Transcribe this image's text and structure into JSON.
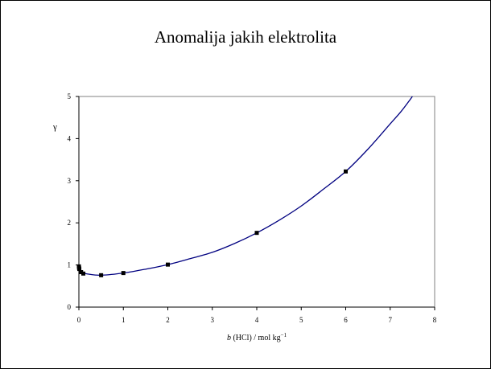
{
  "page": {
    "title": "Anomalija jakih elektrolita"
  },
  "chart_data": {
    "type": "scatter",
    "title": "Anomalija jakih elektrolita",
    "xlabel": {
      "italic": "b",
      "text": " (HCl) / mol kg",
      "sup": "−1"
    },
    "ylabel": "γ",
    "xlim": [
      0,
      8
    ],
    "ylim": [
      0,
      5
    ],
    "xticks": [
      "0",
      "1",
      "2",
      "3",
      "4",
      "5",
      "6",
      "7",
      "8"
    ],
    "yticks": [
      "0",
      "1",
      "2",
      "3",
      "4",
      "5"
    ],
    "grid": false,
    "legend": "none",
    "colors": {
      "marker": "#000000",
      "curve": "#000080"
    },
    "points": [
      {
        "x": 0.001,
        "y": 0.966
      },
      {
        "x": 0.005,
        "y": 0.928
      },
      {
        "x": 0.01,
        "y": 0.904
      },
      {
        "x": 0.05,
        "y": 0.83
      },
      {
        "x": 0.1,
        "y": 0.796
      },
      {
        "x": 0.5,
        "y": 0.757
      },
      {
        "x": 1.0,
        "y": 0.809
      },
      {
        "x": 2.0,
        "y": 1.009
      },
      {
        "x": 4.0,
        "y": 1.762
      },
      {
        "x": 6.0,
        "y": 3.22
      }
    ],
    "curve": [
      {
        "x": 0.0,
        "y": 1.0
      },
      {
        "x": 0.01,
        "y": 0.91
      },
      {
        "x": 0.05,
        "y": 0.84
      },
      {
        "x": 0.1,
        "y": 0.81
      },
      {
        "x": 0.2,
        "y": 0.785
      },
      {
        "x": 0.5,
        "y": 0.757
      },
      {
        "x": 1.0,
        "y": 0.809
      },
      {
        "x": 1.5,
        "y": 0.9
      },
      {
        "x": 2.0,
        "y": 1.009
      },
      {
        "x": 2.5,
        "y": 1.15
      },
      {
        "x": 3.0,
        "y": 1.3
      },
      {
        "x": 3.5,
        "y": 1.51
      },
      {
        "x": 4.0,
        "y": 1.762
      },
      {
        "x": 4.5,
        "y": 2.06
      },
      {
        "x": 5.0,
        "y": 2.4
      },
      {
        "x": 5.5,
        "y": 2.8
      },
      {
        "x": 6.0,
        "y": 3.22
      },
      {
        "x": 6.5,
        "y": 3.75
      },
      {
        "x": 7.0,
        "y": 4.35
      },
      {
        "x": 7.25,
        "y": 4.65
      },
      {
        "x": 7.5,
        "y": 5.0
      }
    ]
  }
}
